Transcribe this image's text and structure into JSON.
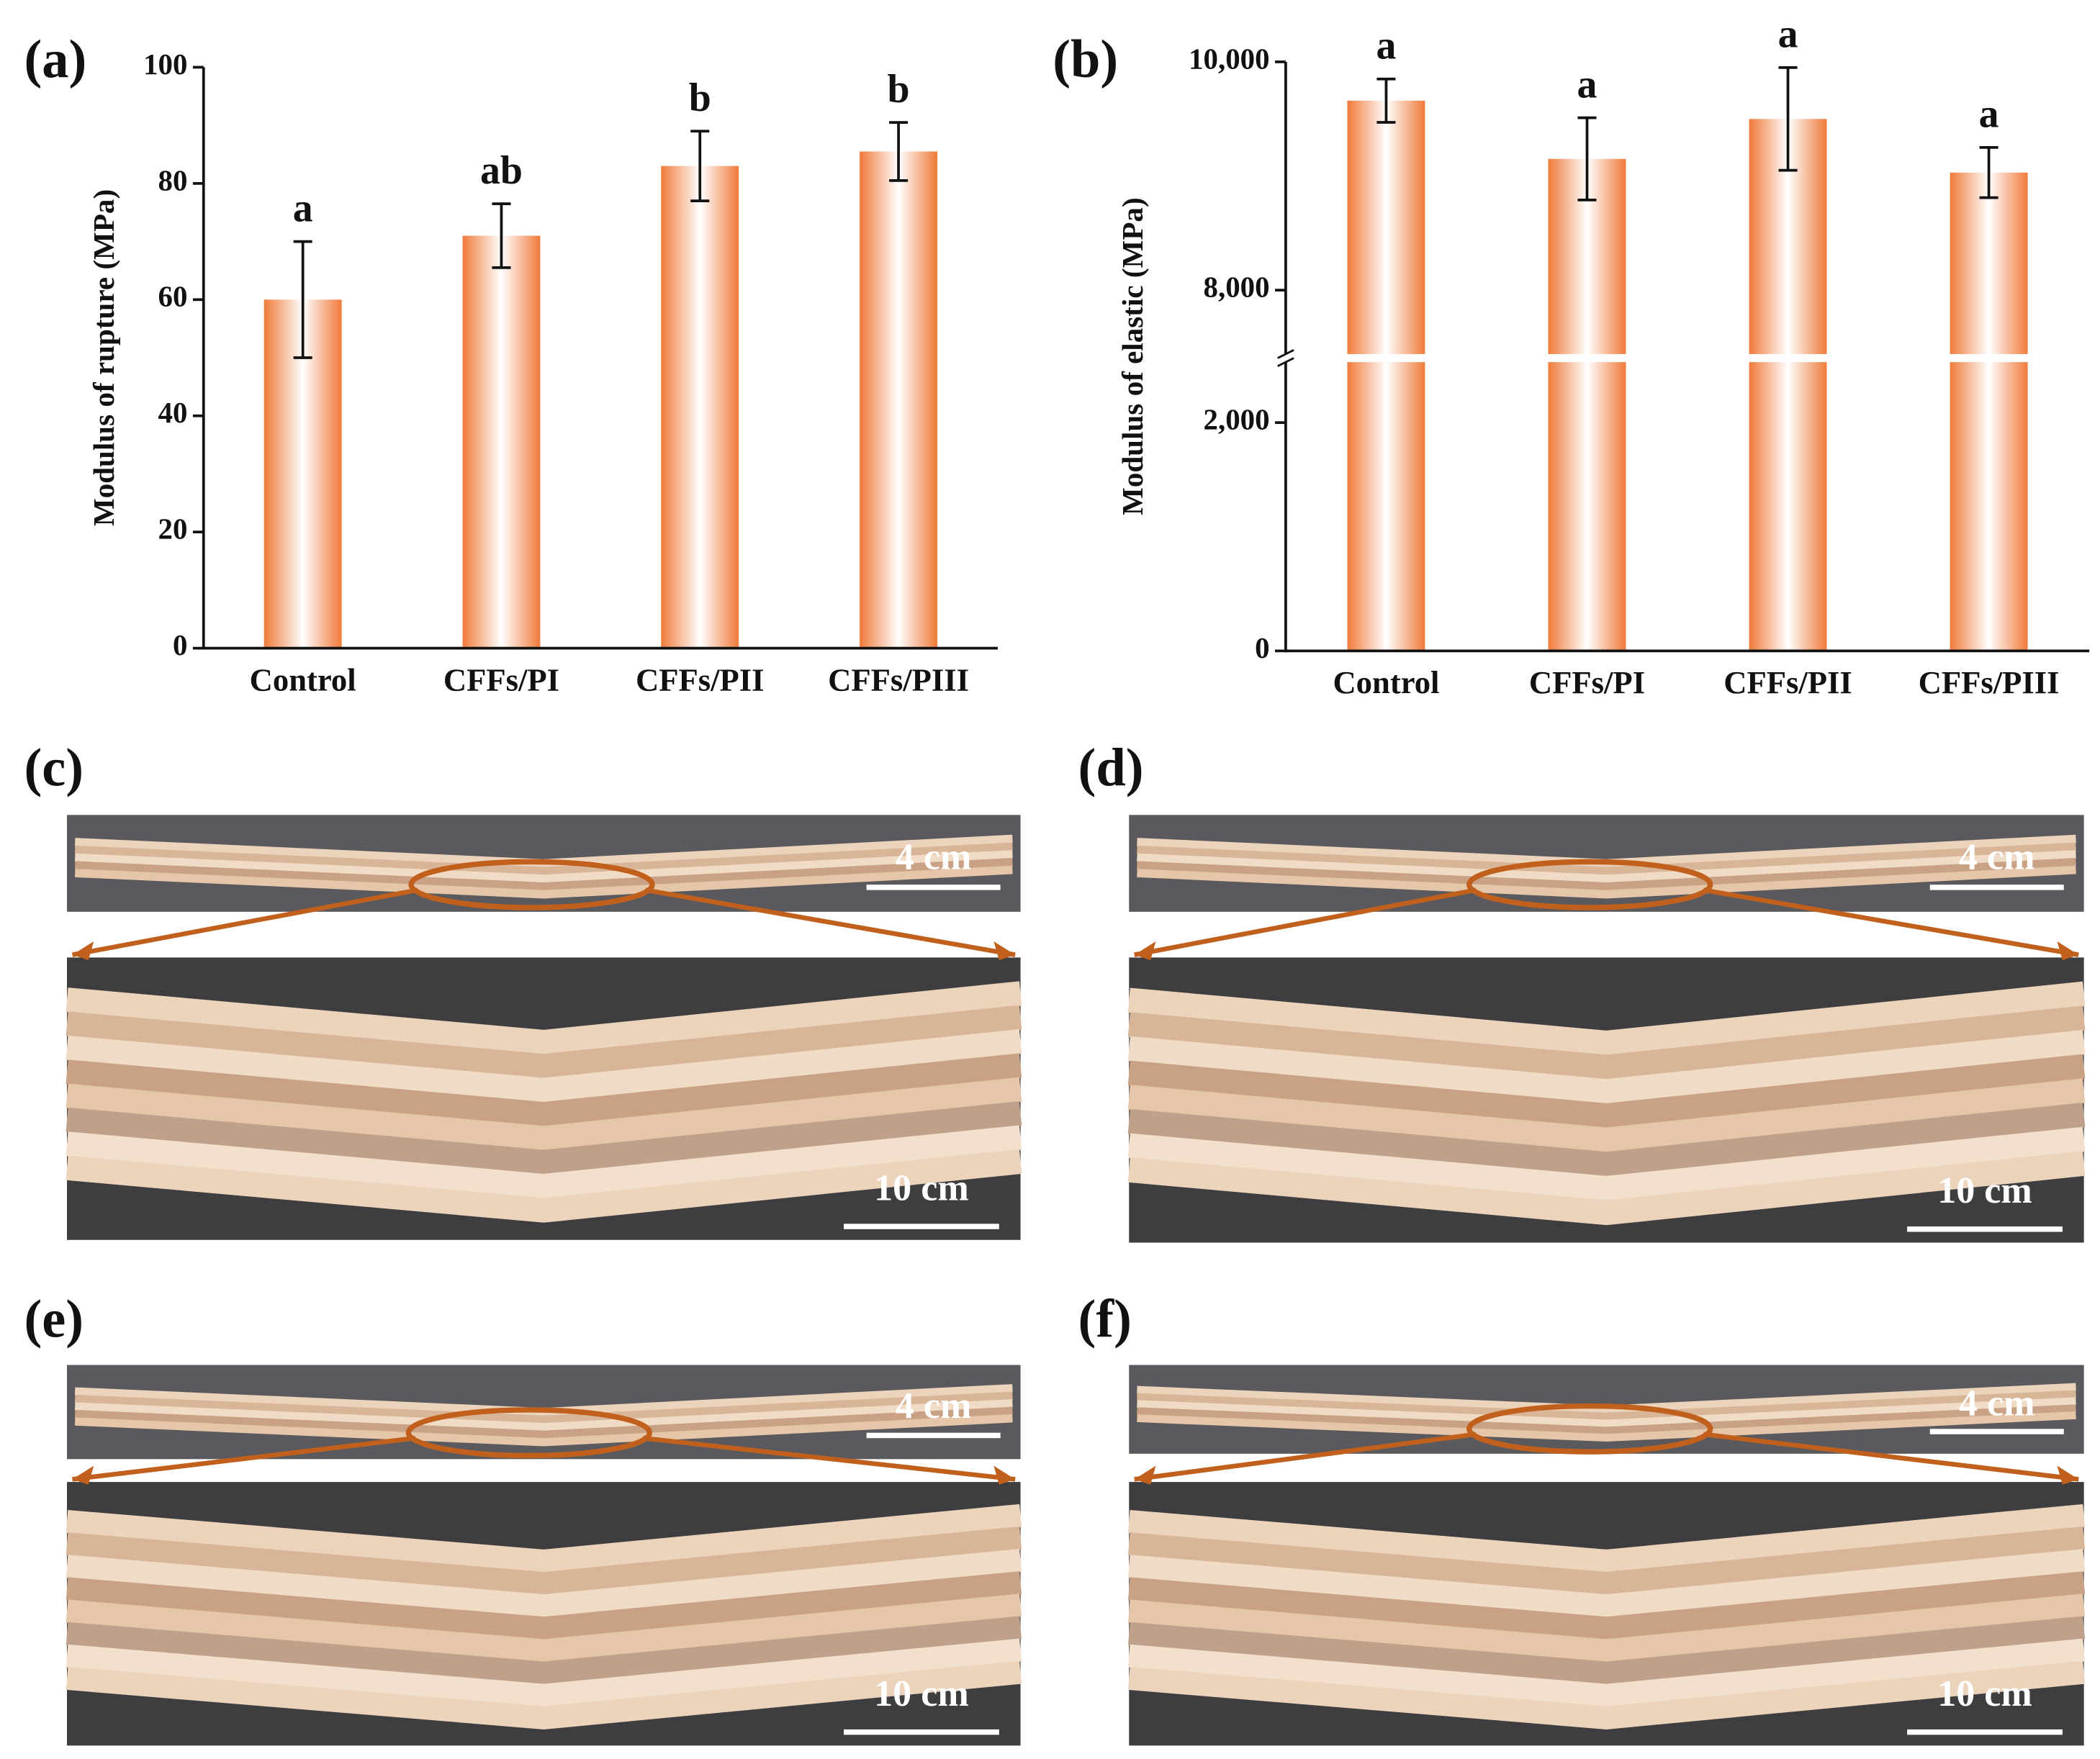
{
  "chart_data": [
    {
      "type": "bar",
      "panel_label": "(a)",
      "ylabel": "Modulus of rupture (MPa)",
      "categories": [
        "Control",
        "CFFs/PI",
        "CFFs/PII",
        "CFFs/PIII"
      ],
      "values": [
        60,
        71,
        83,
        85.5
      ],
      "errors": [
        10,
        5.5,
        6,
        5
      ],
      "annotations": [
        "a",
        "ab",
        "b",
        "b"
      ],
      "color": "#f07a3a",
      "ylim": [
        0,
        100
      ],
      "yticks": [
        0,
        20,
        40,
        60,
        80,
        100
      ]
    },
    {
      "type": "bar",
      "panel_label": "(b)",
      "ylabel": "Modulus of elastic (MPa)",
      "categories": [
        "Control",
        "CFFs/PI",
        "CFFs/PII",
        "CFFs/PIII"
      ],
      "values": [
        9660,
        9150,
        9500,
        9030
      ],
      "errors": [
        190,
        360,
        450,
        220
      ],
      "annotations": [
        "a",
        "a",
        "a",
        "a"
      ],
      "color": "#f07a3a",
      "ylim": [
        0,
        10000
      ],
      "axis_break": [
        2530,
        7440
      ],
      "yticks": [
        0,
        {
          "value": 2000,
          "label": "2,000"
        },
        {
          "value": 8000,
          "label": "8,000"
        },
        {
          "value": 10000,
          "label": "10,000"
        }
      ]
    }
  ],
  "photos": [
    {
      "label": "(c)",
      "scale_top": "4 cm",
      "scale_bottom": "10 cm"
    },
    {
      "label": "(d)",
      "scale_top": "4 cm",
      "scale_bottom": "10 cm"
    },
    {
      "label": "(e)",
      "scale_top": "4 cm",
      "scale_bottom": "10 cm"
    },
    {
      "label": "(f)",
      "scale_top": "4 cm",
      "scale_bottom": "10 cm"
    }
  ]
}
